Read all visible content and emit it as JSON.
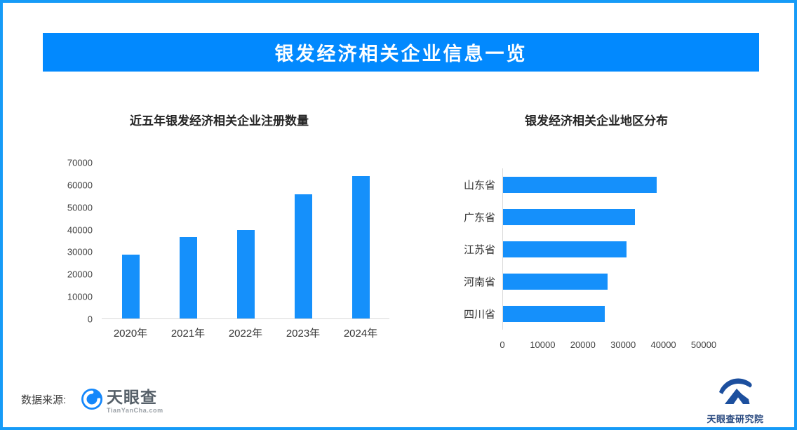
{
  "page": {
    "border_color": "#169bf7",
    "background": "#ffffff"
  },
  "banner": {
    "title": "银发经济相关企业信息一览",
    "bg_color": "#0289fe",
    "text_color": "#ffffff"
  },
  "chart_data": [
    {
      "type": "bar",
      "title": "近五年银发经济相关企业注册数量",
      "categories": [
        "2020年",
        "2021年",
        "2022年",
        "2023年",
        "2024年"
      ],
      "values": [
        28600,
        36600,
        39800,
        55800,
        64000
      ],
      "xlabel": "",
      "ylabel": "",
      "ylim": [
        0,
        70000
      ],
      "yticks": [
        0,
        10000,
        20000,
        30000,
        40000,
        50000,
        60000,
        70000
      ],
      "bar_color": "#1590fb",
      "grid": false,
      "legend": "none"
    },
    {
      "type": "bar-horizontal",
      "title": "银发经济相关企业地区分布",
      "categories": [
        "山东省",
        "广东省",
        "江苏省",
        "河南省",
        "四川省"
      ],
      "values": [
        38300,
        32900,
        30700,
        26100,
        25400
      ],
      "xlabel": "",
      "ylabel": "",
      "xlim": [
        0,
        50000
      ],
      "xticks": [
        0,
        10000,
        20000,
        30000,
        40000,
        50000
      ],
      "bar_color": "#1590fb",
      "grid": false,
      "legend": "none"
    }
  ],
  "footer": {
    "source_label": "数据来源:",
    "tianyancha": {
      "name": "天眼查",
      "domain": "TianYanCha.com"
    },
    "research_institute": "天眼查研究院"
  },
  "icons": {
    "tianyancha_logo": "tianyancha-eye-icon",
    "research_logo": "research-institute-mountain-icon"
  }
}
